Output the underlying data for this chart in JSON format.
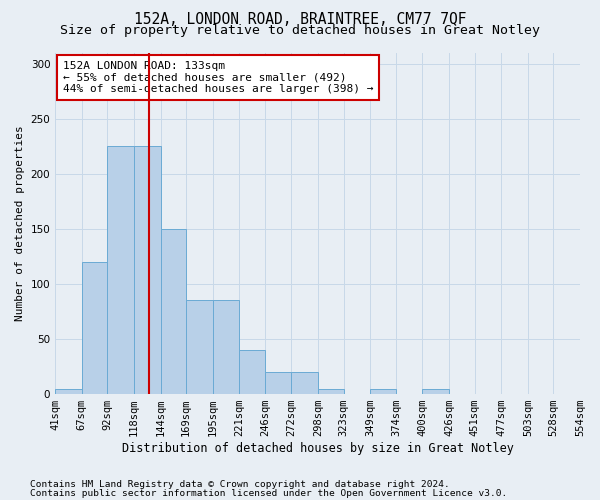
{
  "title1": "152A, LONDON ROAD, BRAINTREE, CM77 7QF",
  "title2": "Size of property relative to detached houses in Great Notley",
  "xlabel": "Distribution of detached houses by size in Great Notley",
  "ylabel": "Number of detached properties",
  "footnote1": "Contains HM Land Registry data © Crown copyright and database right 2024.",
  "footnote2": "Contains public sector information licensed under the Open Government Licence v3.0.",
  "annotation_title": "152A LONDON ROAD: 133sqm",
  "annotation_line1": "← 55% of detached houses are smaller (492)",
  "annotation_line2": "44% of semi-detached houses are larger (398) →",
  "bar_edges": [
    41,
    67,
    92,
    118,
    144,
    169,
    195,
    221,
    246,
    272,
    298,
    323,
    349,
    374,
    400,
    426,
    451,
    477,
    503,
    528,
    554
  ],
  "bar_heights": [
    5,
    120,
    225,
    225,
    150,
    85,
    85,
    40,
    20,
    20,
    5,
    0,
    5,
    0,
    5,
    0,
    0,
    0,
    0,
    0
  ],
  "bar_color": "#b8d0e8",
  "bar_edge_color": "#6aaad4",
  "bar_linewidth": 0.7,
  "grid_color": "#c8d8e8",
  "bg_color": "#e8eef4",
  "vline_color": "#cc0000",
  "vline_x": 133,
  "ylim": [
    0,
    310
  ],
  "yticks": [
    0,
    50,
    100,
    150,
    200,
    250,
    300
  ],
  "annotation_box_color": "white",
  "annotation_box_edge_color": "#cc0000",
  "title1_fontsize": 10.5,
  "title2_fontsize": 9.5,
  "xlabel_fontsize": 8.5,
  "ylabel_fontsize": 8.0,
  "tick_fontsize": 7.5,
  "annotation_fontsize": 8.0,
  "footnote_fontsize": 6.8
}
